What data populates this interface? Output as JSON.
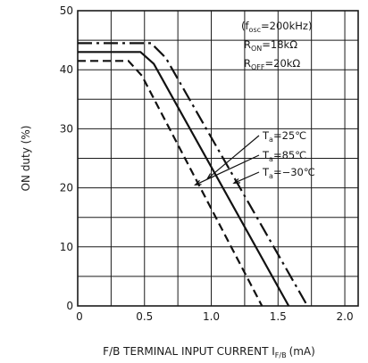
{
  "chart_data": {
    "type": "line",
    "title": "",
    "xlabel": "F/B TERMINAL INPUT CURRENT I",
    "xlabel_sub": "F/B",
    "xlabel_unit": "(mA)",
    "ylabel": "ON duty (%)",
    "xlim": [
      0,
      2.1
    ],
    "ylim": [
      0,
      50
    ],
    "x_ticks": [
      {
        "value": 0,
        "label": "0"
      },
      {
        "value": 0.5,
        "label": "0.5"
      },
      {
        "value": 1.0,
        "label": "1.0"
      },
      {
        "value": 1.5,
        "label": "1.5"
      },
      {
        "value": 2.0,
        "label": "2.0"
      }
    ],
    "y_ticks": [
      {
        "value": 0,
        "label": "0"
      },
      {
        "value": 10,
        "label": "10"
      },
      {
        "value": 20,
        "label": "20"
      },
      {
        "value": 30,
        "label": "30"
      },
      {
        "value": 40,
        "label": "40"
      },
      {
        "value": 50,
        "label": "50"
      }
    ],
    "x_grid": [
      0.25,
      0.5,
      0.75,
      1.0,
      1.25,
      1.5,
      1.75,
      2.0
    ],
    "y_grid": [
      5,
      10,
      15,
      20,
      25,
      30,
      35,
      40,
      45
    ],
    "grid": true,
    "conditions": [
      {
        "main": "(f",
        "sub": "osc",
        "rest": "=200kHz)"
      },
      {
        "main": "R",
        "sub": "ON",
        "rest": "=18kΩ"
      },
      {
        "main": "R",
        "sub": "OFF",
        "rest": "=20kΩ"
      }
    ],
    "series": [
      {
        "name": "Ta=25℃",
        "label_main": "T",
        "label_sub": "a",
        "label_rest": "=25℃",
        "style": "solid",
        "x": [
          0,
          0.47,
          0.57,
          1.58
        ],
        "y": [
          43,
          43,
          41,
          0
        ],
        "leader_to": [
          0.97,
          21.5
        ]
      },
      {
        "name": "Ta=85℃",
        "label_main": "T",
        "label_sub": "a",
        "label_rest": "=85℃",
        "style": "dash",
        "x": [
          0,
          0.38,
          0.48,
          1.38
        ],
        "y": [
          41.5,
          41.5,
          39,
          0
        ],
        "leader_to": [
          0.88,
          20.5
        ]
      },
      {
        "name": "Ta=-30℃",
        "label_main": "T",
        "label_sub": "a",
        "label_rest": "=−30℃",
        "style": "dashdot",
        "x": [
          0,
          0.55,
          0.66,
          1.72
        ],
        "y": [
          44.5,
          44.5,
          42,
          0
        ],
        "leader_to": [
          1.17,
          20.8
        ]
      }
    ]
  }
}
